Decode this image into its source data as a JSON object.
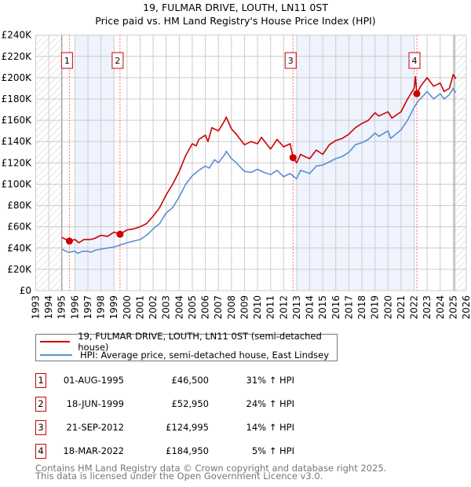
{
  "title_line1": "19, FULMAR DRIVE, LOUTH, LN11 0ST",
  "title_line2": "Price paid vs. HM Land Registry's House Price Index (HPI)",
  "colors": {
    "property": "#cc0000",
    "hpi": "#5b8fd0",
    "shade": "#eef3fd",
    "sale_line": "#ff6666"
  },
  "chart_data": {
    "type": "line",
    "title": "Price paid vs. HM Land Registry's House Price Index (HPI)",
    "xlim": [
      1993,
      2026
    ],
    "ylim": [
      0,
      240000
    ],
    "grid": true,
    "x_ticks": [
      "1993",
      "1994",
      "1995",
      "1996",
      "1997",
      "1998",
      "1999",
      "2000",
      "2001",
      "2002",
      "2003",
      "2004",
      "2005",
      "2006",
      "2007",
      "2008",
      "2009",
      "2010",
      "2011",
      "2012",
      "2013",
      "2014",
      "2015",
      "2016",
      "2017",
      "2018",
      "2019",
      "2020",
      "2021",
      "2022",
      "2023",
      "2024",
      "2025",
      "2026"
    ],
    "y_ticks": [
      {
        "v": 0,
        "label": "£0"
      },
      {
        "v": 20000,
        "label": "£20K"
      },
      {
        "v": 40000,
        "label": "£40K"
      },
      {
        "v": 60000,
        "label": "£60K"
      },
      {
        "v": 80000,
        "label": "£80K"
      },
      {
        "v": 100000,
        "label": "£100K"
      },
      {
        "v": 120000,
        "label": "£120K"
      },
      {
        "v": 140000,
        "label": "£140K"
      },
      {
        "v": 160000,
        "label": "£160K"
      },
      {
        "v": 180000,
        "label": "£180K"
      },
      {
        "v": 200000,
        "label": "£200K"
      },
      {
        "v": 220000,
        "label": "£220K"
      },
      {
        "v": 240000,
        "label": "£240K"
      }
    ],
    "hatched_ranges": [
      [
        1993,
        1995
      ],
      [
        2025.1,
        2026
      ]
    ],
    "shaded_ranges": [
      [
        1996,
        1999
      ],
      [
        2013,
        2022
      ]
    ],
    "legend_position": "below",
    "series": [
      {
        "name": "19, FULMAR DRIVE, LOUTH, LN11 0ST (semi-detached house)",
        "color": "#cc0000",
        "points": [
          [
            1995.0,
            50
          ],
          [
            1995.58,
            46.5
          ],
          [
            1996,
            48
          ],
          [
            1996.3,
            45
          ],
          [
            1996.7,
            48
          ],
          [
            1997.2,
            48
          ],
          [
            1997.5,
            49
          ],
          [
            1998,
            52
          ],
          [
            1998.5,
            51
          ],
          [
            1999,
            55
          ],
          [
            1999.46,
            53
          ],
          [
            2000,
            57
          ],
          [
            2000.5,
            58
          ],
          [
            2001,
            60
          ],
          [
            2001.5,
            63
          ],
          [
            2002,
            70
          ],
          [
            2002.5,
            78
          ],
          [
            2003,
            90
          ],
          [
            2003.5,
            100
          ],
          [
            2004,
            112
          ],
          [
            2004.5,
            127
          ],
          [
            2005,
            138
          ],
          [
            2005.3,
            136
          ],
          [
            2005.5,
            142
          ],
          [
            2006,
            146
          ],
          [
            2006.2,
            140
          ],
          [
            2006.5,
            153
          ],
          [
            2007,
            150
          ],
          [
            2007.5,
            160
          ],
          [
            2007.6,
            163
          ],
          [
            2008,
            152
          ],
          [
            2008.3,
            148
          ],
          [
            2009,
            137
          ],
          [
            2009.5,
            140
          ],
          [
            2010,
            138
          ],
          [
            2010.3,
            144
          ],
          [
            2011,
            133
          ],
          [
            2011.5,
            142
          ],
          [
            2012,
            135
          ],
          [
            2012.5,
            138
          ],
          [
            2012.72,
            125
          ],
          [
            2013,
            120
          ],
          [
            2013.3,
            128
          ],
          [
            2013.6,
            126
          ],
          [
            2014,
            124
          ],
          [
            2014.5,
            132
          ],
          [
            2015,
            128
          ],
          [
            2015.5,
            137
          ],
          [
            2016,
            141
          ],
          [
            2016.5,
            143
          ],
          [
            2017,
            147
          ],
          [
            2017.5,
            153
          ],
          [
            2018,
            157
          ],
          [
            2018.5,
            160
          ],
          [
            2019,
            167
          ],
          [
            2019.3,
            164
          ],
          [
            2020,
            168
          ],
          [
            2020.3,
            162
          ],
          [
            2021,
            168
          ],
          [
            2021.5,
            180
          ],
          [
            2022,
            190
          ],
          [
            2022.1,
            201
          ],
          [
            2022.21,
            185
          ],
          [
            2022.5,
            192
          ],
          [
            2023,
            200
          ],
          [
            2023.5,
            192
          ],
          [
            2024,
            195
          ],
          [
            2024.3,
            187
          ],
          [
            2024.7,
            190
          ],
          [
            2025,
            203
          ],
          [
            2025.2,
            199
          ]
        ]
      },
      {
        "name": "HPI: Average price, semi-detached house, East Lindsey",
        "color": "#5b8fd0",
        "points": [
          [
            1995,
            39
          ],
          [
            1995.5,
            36
          ],
          [
            1996,
            37
          ],
          [
            1996.2,
            35
          ],
          [
            1996.6,
            37
          ],
          [
            1997,
            37
          ],
          [
            1997.2,
            36
          ],
          [
            1997.6,
            38
          ],
          [
            1998,
            39
          ],
          [
            1999,
            41
          ],
          [
            1999.5,
            43
          ],
          [
            2000,
            45
          ],
          [
            2001,
            48
          ],
          [
            2001.5,
            52
          ],
          [
            2002,
            58
          ],
          [
            2002.5,
            63
          ],
          [
            2003,
            73
          ],
          [
            2003.5,
            78
          ],
          [
            2004,
            88
          ],
          [
            2004.5,
            100
          ],
          [
            2005,
            108
          ],
          [
            2005.5,
            113
          ],
          [
            2006,
            117
          ],
          [
            2006.3,
            115
          ],
          [
            2006.7,
            123
          ],
          [
            2007,
            120
          ],
          [
            2007.5,
            128
          ],
          [
            2007.6,
            131
          ],
          [
            2008,
            124
          ],
          [
            2008.3,
            121
          ],
          [
            2009,
            112
          ],
          [
            2009.5,
            111
          ],
          [
            2010,
            114
          ],
          [
            2010.5,
            111
          ],
          [
            2011,
            109
          ],
          [
            2011.5,
            113
          ],
          [
            2012,
            107
          ],
          [
            2012.5,
            110
          ],
          [
            2013,
            105
          ],
          [
            2013.3,
            113
          ],
          [
            2014,
            110
          ],
          [
            2014.5,
            117
          ],
          [
            2015,
            118
          ],
          [
            2016,
            124
          ],
          [
            2016.5,
            126
          ],
          [
            2017,
            130
          ],
          [
            2017.5,
            137
          ],
          [
            2018,
            139
          ],
          [
            2018.5,
            142
          ],
          [
            2019,
            148
          ],
          [
            2019.3,
            145
          ],
          [
            2020,
            150
          ],
          [
            2020.2,
            143
          ],
          [
            2021,
            151
          ],
          [
            2021.5,
            160
          ],
          [
            2022,
            172
          ],
          [
            2022.3,
            178
          ],
          [
            2022.7,
            183
          ],
          [
            2023,
            187
          ],
          [
            2023.5,
            180
          ],
          [
            2024,
            185
          ],
          [
            2024.3,
            180
          ],
          [
            2024.7,
            184
          ],
          [
            2025,
            190
          ],
          [
            2025.2,
            186
          ]
        ]
      }
    ],
    "sales": [
      {
        "label": "1",
        "x": 1995.58,
        "price": 46500
      },
      {
        "label": "2",
        "x": 1999.46,
        "price": 52950
      },
      {
        "label": "3",
        "x": 2012.72,
        "price": 124995
      },
      {
        "label": "4",
        "x": 2022.21,
        "price": 184950
      }
    ]
  },
  "legend": {
    "property": "19, FULMAR DRIVE, LOUTH, LN11 0ST (semi-detached house)",
    "hpi": "HPI: Average price, semi-detached house, East Lindsey"
  },
  "transactions": [
    {
      "num": "1",
      "date": "01-AUG-1995",
      "price": "£46,500",
      "hpi": "31% ↑ HPI"
    },
    {
      "num": "2",
      "date": "18-JUN-1999",
      "price": "£52,950",
      "hpi": "24% ↑ HPI"
    },
    {
      "num": "3",
      "date": "21-SEP-2012",
      "price": "£124,995",
      "hpi": "14% ↑ HPI"
    },
    {
      "num": "4",
      "date": "18-MAR-2022",
      "price": "£184,950",
      "hpi": "5% ↑ HPI"
    }
  ],
  "footer": {
    "line1": "Contains HM Land Registry data © Crown copyright and database right 2025.",
    "line2": "This data is licensed under the Open Government Licence v3.0."
  }
}
